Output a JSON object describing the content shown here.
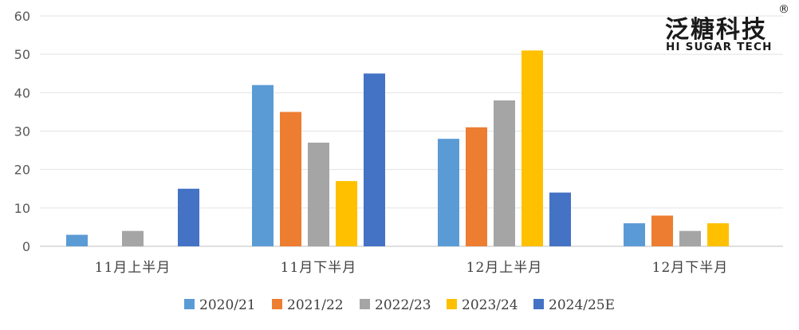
{
  "chart_data": {
    "type": "bar",
    "categories": [
      "11月上半月",
      "11月下半月",
      "12月上半月",
      "12月下半月"
    ],
    "series": [
      {
        "name": "2020/21",
        "color": "#5B9BD5",
        "values": [
          3,
          42,
          28,
          6
        ]
      },
      {
        "name": "2021/22",
        "color": "#ED7D31",
        "values": [
          0,
          35,
          31,
          8
        ]
      },
      {
        "name": "2022/23",
        "color": "#A5A5A5",
        "values": [
          4,
          27,
          38,
          4
        ]
      },
      {
        "name": "2023/24",
        "color": "#FFC000",
        "values": [
          0,
          17,
          51,
          6
        ]
      },
      {
        "name": "2024/25E",
        "color": "#4472C4",
        "values": [
          15,
          45,
          14,
          0
        ]
      }
    ],
    "ylim": [
      0,
      60
    ],
    "yticks": [
      0,
      10,
      20,
      30,
      40,
      50,
      60
    ],
    "grid": true,
    "legend": "bottom",
    "title": "",
    "xlabel": "",
    "ylabel": ""
  },
  "logo": {
    "cn": "泛糖科技",
    "en": "HI SUGAR TECH",
    "reg": "®"
  }
}
